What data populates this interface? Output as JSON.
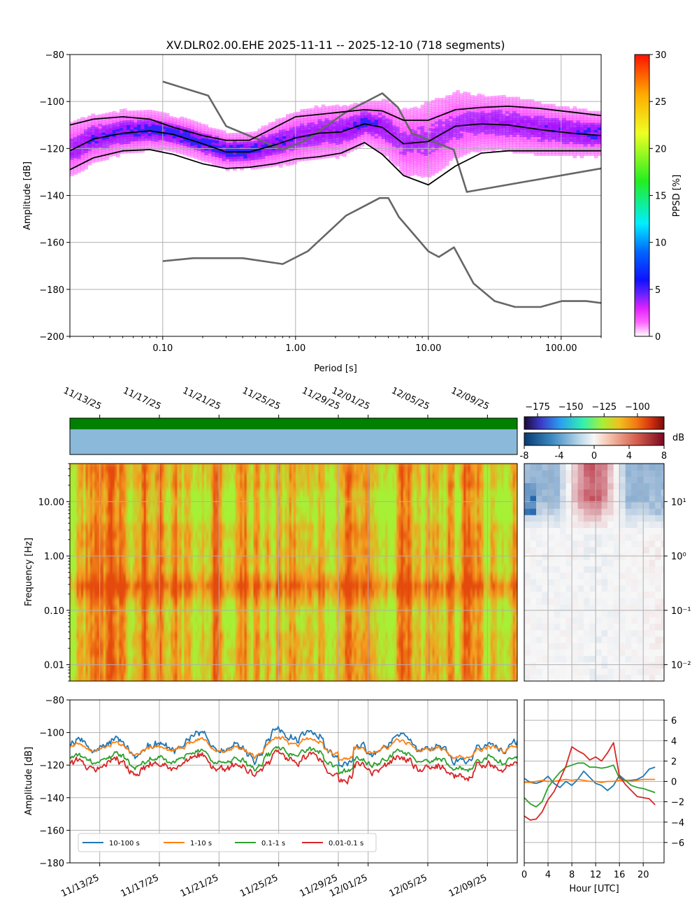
{
  "title": "XV.DLR02.00.EHE   2025-11-11 -- 2025-12-10  (718 segments)",
  "colors": {
    "ppsd_cmap": [
      "#ffffff",
      "#ff33ff",
      "#aa11ff",
      "#3322ff",
      "#0a3bff",
      "#00aaff",
      "#00ffff",
      "#22ee22",
      "#e6ff22",
      "#ffb000",
      "#ff2200"
    ],
    "percentile_line": "#000000",
    "noise_model": "#666666",
    "spec_base": "#f5a020",
    "spec_hot": "#e44a0e",
    "spec_cool": "#a6f035",
    "band_colors": [
      "#1f77b4",
      "#ff7f0e",
      "#2ca02c",
      "#d62728"
    ],
    "state_top": "#008000",
    "state_bottom": "#8ab9d9"
  },
  "chart_data": [
    {
      "id": "ppsd",
      "type": "heatmap",
      "title": "XV.DLR02.00.EHE   2025-11-11 -- 2025-12-10  (718 segments)",
      "xlabel": "Period [s]",
      "ylabel": "Amplitude [dB]",
      "x_scale": "log",
      "xlim": [
        0.02,
        200
      ],
      "ylim": [
        -200,
        -80
      ],
      "x_ticks": [
        0.1,
        1,
        10,
        100
      ],
      "x_tick_labels": [
        "0.10",
        "1.00",
        "10.00",
        "100.00"
      ],
      "y_ticks": [
        -200,
        -180,
        -160,
        -140,
        -120,
        -100,
        -80
      ],
      "y_tick_labels": [
        "−200",
        "−180",
        "−160",
        "−140",
        "−120",
        "−100",
        "−80"
      ],
      "grid": true,
      "colorbar": {
        "label": "PPSD [%]",
        "range": [
          0,
          30
        ],
        "ticks": [
          0,
          5,
          10,
          15,
          20,
          25,
          30
        ],
        "tick_labels": [
          "0",
          "5",
          "10",
          "15",
          "20",
          "25",
          "30"
        ]
      },
      "percentiles": [
        {
          "period": [
            0.02,
            0.03,
            0.05,
            0.08,
            0.12,
            0.2,
            0.3,
            0.45,
            0.7,
            1.0,
            1.5,
            2.2,
            3.3,
            4.5,
            6.5,
            10,
            16,
            25,
            40,
            70,
            120,
            200
          ],
          "db": [
            -110,
            -107.5,
            -106.5,
            -107.5,
            -111,
            -114.5,
            -116.5,
            -116.5,
            -111,
            -106.5,
            -105.5,
            -104.5,
            -103.5,
            -104,
            -108,
            -108,
            -103.5,
            -102.5,
            -102,
            -103,
            -104.5,
            -106
          ]
        },
        {
          "period": [
            0.02,
            0.03,
            0.05,
            0.08,
            0.12,
            0.2,
            0.3,
            0.45,
            0.7,
            1.0,
            1.5,
            2.2,
            3.3,
            4.5,
            6.5,
            10,
            16,
            25,
            40,
            70,
            120,
            200
          ],
          "db": [
            -121,
            -116,
            -113.5,
            -112.5,
            -114,
            -118,
            -121.5,
            -121.5,
            -118.5,
            -115.5,
            -113.5,
            -113,
            -109.5,
            -111,
            -118,
            -117,
            -110.5,
            -109.5,
            -110,
            -112,
            -113.5,
            -114.5
          ]
        },
        {
          "period": [
            0.02,
            0.03,
            0.05,
            0.08,
            0.12,
            0.2,
            0.3,
            0.45,
            0.7,
            1.0,
            1.5,
            2.2,
            3.3,
            4.5,
            6.5,
            10,
            16,
            25,
            40,
            70,
            120,
            200
          ],
          "db": [
            -129,
            -124,
            -121,
            -120.5,
            -122.5,
            -126.5,
            -128.5,
            -128,
            -126.5,
            -124.5,
            -123.5,
            -122,
            -117.5,
            -122.5,
            -131.5,
            -135.5,
            -127.5,
            -122,
            -121,
            -121,
            -121,
            -121
          ]
        }
      ],
      "noise_models": [
        {
          "period": [
            0.1,
            0.22,
            0.3,
            0.8,
            1.2,
            2.4,
            4.5,
            5.9,
            7.5,
            15.5,
            19.5,
            200
          ],
          "db": [
            -91.5,
            -97.5,
            -110.5,
            -120.5,
            -116.5,
            -104.5,
            -96.5,
            -102.5,
            -113.5,
            -120.5,
            -138.5,
            -128.5
          ]
        },
        {
          "period": [
            0.1,
            0.17,
            0.4,
            0.8,
            1.24,
            2.4,
            4.3,
            5.0,
            6.0,
            10.0,
            12.0,
            15.6,
            21.9,
            31.6,
            45.0,
            70.0,
            101.0,
            154.0,
            200
          ],
          "db": [
            -168,
            -166.7,
            -166.7,
            -169.2,
            -163.7,
            -148.6,
            -141.1,
            -141.1,
            -149.2,
            -163.8,
            -166.2,
            -162.1,
            -177.5,
            -185.0,
            -187.5,
            -187.5,
            -185.0,
            -185.0,
            -185.8
          ]
        }
      ]
    },
    {
      "id": "spectrogram",
      "type": "heatmap",
      "ylabel": "Frequency [Hz]",
      "y_scale": "log",
      "ylim": [
        0.005,
        50
      ],
      "y_ticks": [
        0.01,
        0.1,
        1,
        10
      ],
      "y_tick_labels": [
        "0.01",
        "0.10",
        "1.00",
        "10.00"
      ],
      "x_tick_labels": [
        "11/13/25",
        "11/17/25",
        "11/21/25",
        "11/25/25",
        "11/29/25",
        "12/01/25",
        "12/05/25",
        "12/09/25"
      ],
      "x_tick_days": [
        2,
        6,
        10,
        14,
        18,
        20,
        24,
        28
      ],
      "x_range_days": [
        0,
        30
      ],
      "grid": true,
      "colorbar": {
        "range": [
          -185,
          -80
        ],
        "ticks": [
          -175,
          -150,
          -125,
          -100
        ],
        "tick_labels": [
          "−175",
          "−150",
          "−125",
          "−100"
        ]
      }
    },
    {
      "id": "hourly-deviation",
      "type": "heatmap",
      "y_scale": "log",
      "ylim": [
        0.005,
        50
      ],
      "y_ticks": [
        0.01,
        0.1,
        1,
        10
      ],
      "y_tick_labels": [
        "10⁻²",
        "10⁻¹",
        "10⁰",
        "10¹"
      ],
      "x_range_hours": [
        0,
        23.5
      ],
      "x_ticks": [
        0,
        4,
        8,
        12,
        16,
        20
      ],
      "grid": true,
      "colorbar": {
        "label": "dB",
        "range": [
          -8,
          8
        ],
        "ticks": [
          -8,
          -4,
          0,
          4,
          8
        ],
        "tick_labels": [
          "-8",
          "-4",
          "0",
          "4",
          "8"
        ]
      }
    },
    {
      "id": "band-amplitudes",
      "type": "line",
      "ylabel": "Amplitude [dB]",
      "ylim": [
        -180,
        -80
      ],
      "y_ticks": [
        -180,
        -160,
        -140,
        -120,
        -100,
        -80
      ],
      "y_tick_labels": [
        "−180",
        "−160",
        "−140",
        "−120",
        "−100",
        "−80"
      ],
      "x_tick_labels": [
        "11/13/25",
        "11/17/25",
        "11/21/25",
        "11/25/25",
        "11/29/25",
        "12/01/25",
        "12/05/25",
        "12/09/25"
      ],
      "x_tick_days": [
        2,
        6,
        10,
        14,
        18,
        20,
        24,
        28
      ],
      "x_range_days": [
        0,
        30
      ],
      "legend_position": "lower-left",
      "grid": true,
      "series": [
        {
          "name": "10-100 s",
          "mean_db": -109
        },
        {
          "name": "1-10 s",
          "mean_db": -110
        },
        {
          "name": "0.1-1 s",
          "mean_db": -117
        },
        {
          "name": "0.01-0.1 s",
          "mean_db": -121
        }
      ]
    },
    {
      "id": "hourly-band-deviation",
      "type": "line",
      "xlabel": "Hour [UTC]",
      "xlim": [
        0,
        23.5
      ],
      "ylim": [
        -8,
        8
      ],
      "x_ticks": [
        0,
        4,
        8,
        12,
        16,
        20
      ],
      "x_tick_labels": [
        "0",
        "4",
        "8",
        "12",
        "16",
        "20"
      ],
      "y_ticks": [
        -6,
        -4,
        -2,
        0,
        2,
        4,
        6
      ],
      "y_tick_labels": [
        "−6",
        "−4",
        "−2",
        "0",
        "2",
        "4",
        "6"
      ],
      "grid": true,
      "hours": [
        0,
        1,
        2,
        3,
        4,
        5,
        6,
        7,
        8,
        9,
        10,
        11,
        12,
        13,
        14,
        15,
        16,
        17,
        18,
        19,
        20,
        21,
        22
      ],
      "series": [
        {
          "name": "10-100 s",
          "values": [
            0.3,
            -0.1,
            -0.2,
            0.0,
            0.5,
            -0.2,
            -0.6,
            0.0,
            -0.4,
            0.2,
            1.0,
            0.4,
            -0.2,
            -0.4,
            -0.9,
            -0.4,
            0.6,
            0.1,
            0.1,
            0.2,
            0.5,
            1.2,
            1.4
          ]
        },
        {
          "name": "1-10 s",
          "values": [
            -0.1,
            -0.1,
            0.0,
            0.1,
            0.0,
            0.0,
            0.1,
            0.2,
            0.1,
            0.2,
            0.1,
            0.0,
            0.0,
            -0.1,
            0.0,
            0.0,
            0.1,
            0.1,
            0.0,
            0.1,
            0.2,
            0.2,
            0.2
          ]
        },
        {
          "name": "0.1-1 s",
          "values": [
            -1.6,
            -2.2,
            -2.5,
            -2.0,
            -0.6,
            0.2,
            0.9,
            1.4,
            1.6,
            1.8,
            1.8,
            1.4,
            1.4,
            1.3,
            1.4,
            1.6,
            0.3,
            0.1,
            -0.4,
            -0.6,
            -0.7,
            -0.9,
            -1.1
          ]
        },
        {
          "name": "0.01-0.1 s",
          "values": [
            -3.4,
            -3.8,
            -3.7,
            -3.0,
            -1.8,
            -1.0,
            0.2,
            1.5,
            3.4,
            3.0,
            2.7,
            2.1,
            2.4,
            2.0,
            2.8,
            3.8,
            0.5,
            -0.3,
            -0.9,
            -1.5,
            -1.6,
            -1.7,
            -2.3
          ]
        }
      ]
    }
  ]
}
